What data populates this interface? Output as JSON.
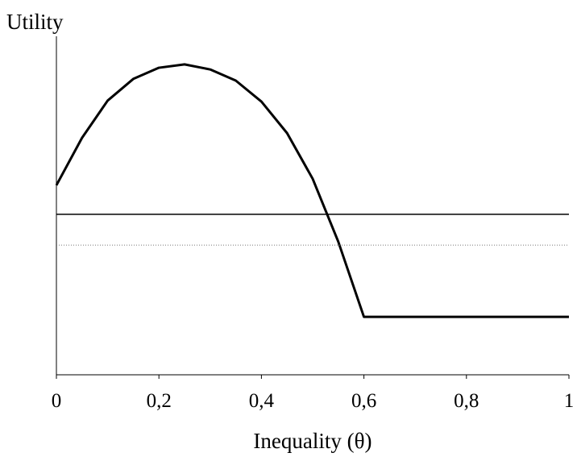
{
  "chart_data": {
    "type": "line",
    "ylabel": "Utility",
    "xlabel": "Inequality (θ)",
    "xlim": [
      0,
      1
    ],
    "ylim": [
      0,
      1
    ],
    "xticks": [
      0,
      {
        "value": 0.2,
        "label": "0,2"
      },
      {
        "value": 0.4,
        "label": "0,4"
      },
      {
        "value": 0.6,
        "label": "0,6"
      },
      {
        "value": 0.8,
        "label": "0,8"
      },
      1
    ],
    "series": [
      {
        "color": "#000000",
        "style": "solid",
        "width": 3,
        "x": [
          0,
          0.05,
          0.1,
          0.15,
          0.2,
          0.25,
          0.3,
          0.35,
          0.4,
          0.45,
          0.5,
          0.55,
          0.6,
          1
        ],
        "values": [
          0.56,
          0.7,
          0.81,
          0.874,
          0.907,
          0.917,
          0.902,
          0.869,
          0.807,
          0.714,
          0.579,
          0.393,
          0.171,
          0.171
        ]
      },
      {
        "color": "#000000",
        "style": "solid",
        "width": 1.5,
        "x": [
          0,
          1
        ],
        "values": [
          0.474,
          0.474
        ]
      },
      {
        "color": "#777777",
        "style": "dotted",
        "width": 1,
        "x": [
          0,
          1
        ],
        "values": [
          0.383,
          0.383
        ]
      }
    ]
  }
}
